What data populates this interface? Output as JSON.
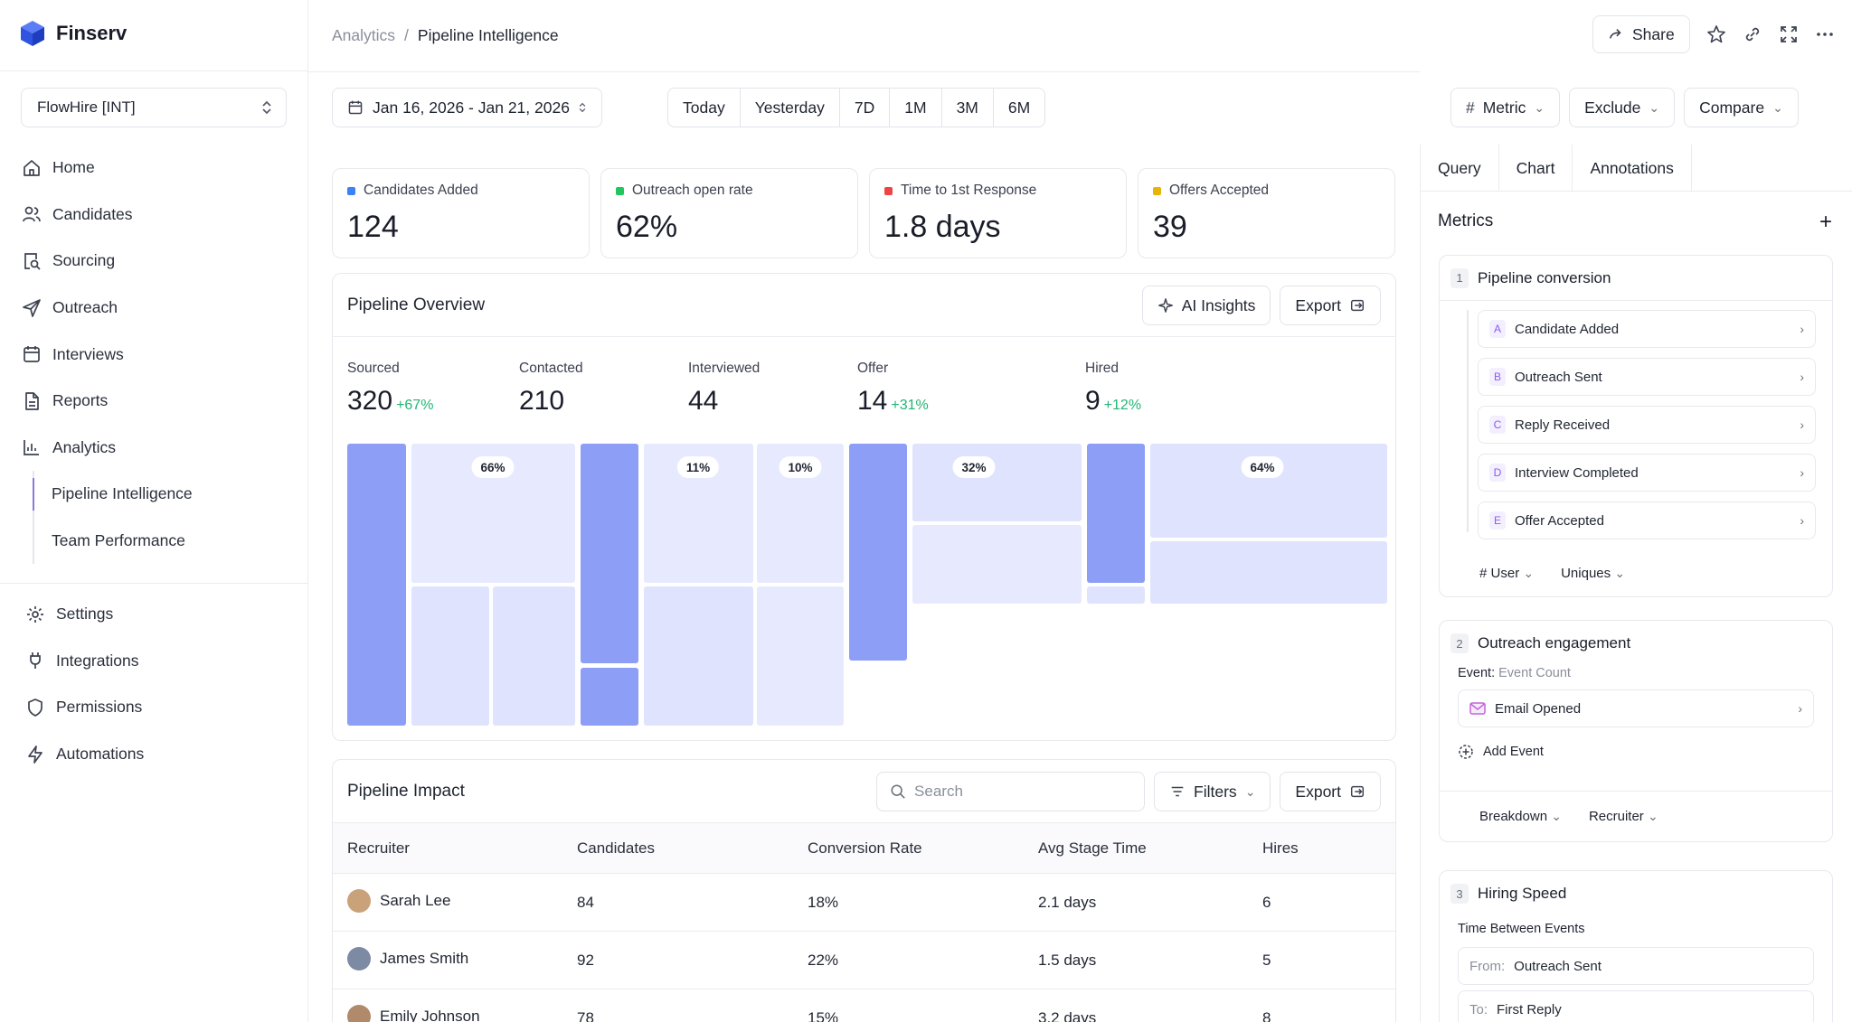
{
  "brand": {
    "name": "Finserv"
  },
  "workspace": {
    "name": "FlowHire [INT]"
  },
  "sidebar": {
    "items": [
      {
        "label": "Home",
        "icon": "home-icon"
      },
      {
        "label": "Candidates",
        "icon": "users-icon"
      },
      {
        "label": "Sourcing",
        "icon": "search-doc-icon"
      },
      {
        "label": "Outreach",
        "icon": "send-icon"
      },
      {
        "label": "Interviews",
        "icon": "calendar-icon"
      },
      {
        "label": "Reports",
        "icon": "file-icon"
      },
      {
        "label": "Analytics",
        "icon": "chart-icon"
      }
    ],
    "sub_items": [
      {
        "label": "Pipeline Intelligence",
        "active": true
      },
      {
        "label": "Team Performance",
        "active": false
      }
    ],
    "bottom_items": [
      {
        "label": "Settings",
        "icon": "gear-icon"
      },
      {
        "label": "Integrations",
        "icon": "plug-icon"
      },
      {
        "label": "Permissions",
        "icon": "shield-icon"
      },
      {
        "label": "Automations",
        "icon": "bolt-icon"
      }
    ]
  },
  "breadcrumb": {
    "parent": "Analytics",
    "separator": "/",
    "current": "Pipeline Intelligence"
  },
  "topbar": {
    "share_label": "Share"
  },
  "filters": {
    "date_range": "Jan 16, 2026 - Jan 21, 2026",
    "ranges": [
      "Today",
      "Yesterday",
      "7D",
      "1M",
      "3M",
      "6M"
    ],
    "metric_label": "Metric",
    "exclude_label": "Exclude",
    "compare_label": "Compare"
  },
  "kpis": [
    {
      "label": "Candidates Added",
      "value": "124",
      "color": "#3b82f6"
    },
    {
      "label": "Outreach open rate",
      "value": "62%",
      "color": "#22c55e"
    },
    {
      "label": "Time to 1st Response",
      "value": "1.8 days",
      "color": "#ef4444"
    },
    {
      "label": "Offers Accepted",
      "value": "39",
      "color": "#eab308"
    }
  ],
  "overview": {
    "title": "Pipeline Overview",
    "ai_label": "AI Insights",
    "export_label": "Export",
    "stages": [
      {
        "name": "Sourced",
        "value": "320",
        "delta": "+67%"
      },
      {
        "name": "Contacted",
        "value": "210",
        "delta": ""
      },
      {
        "name": "Interviewed",
        "value": "44",
        "delta": ""
      },
      {
        "name": "Offer",
        "value": "14",
        "delta": "+31%"
      },
      {
        "name": "Hired",
        "value": "9",
        "delta": "+12%"
      }
    ],
    "conversion_badges": [
      "66%",
      "11%",
      "10%",
      "32%",
      "64%"
    ]
  },
  "impact": {
    "title": "Pipeline Impact",
    "search_placeholder": "Search",
    "filters_label": "Filters",
    "export_label": "Export",
    "columns": [
      "Recruiter",
      "Candidates",
      "Conversion Rate",
      "Avg Stage Time",
      "Hires"
    ],
    "rows": [
      {
        "name": "Sarah Lee",
        "candidates": "84",
        "conversion": "18%",
        "time": "2.1 days",
        "hires": "6",
        "avatar_color": "#c9a27a"
      },
      {
        "name": "James Smith",
        "candidates": "92",
        "conversion": "22%",
        "time": "1.5 days",
        "hires": "5",
        "avatar_color": "#7d8aa3"
      },
      {
        "name": "Emily Johnson",
        "candidates": "78",
        "conversion": "15%",
        "time": "3.2 days",
        "hires": "8",
        "avatar_color": "#b08a6a"
      }
    ]
  },
  "panel": {
    "tabs": [
      "Query",
      "Chart",
      "Annotations"
    ],
    "metrics_title": "Metrics",
    "add_symbol": "+",
    "metric1": {
      "num": "1",
      "title": "Pipeline conversion",
      "steps": [
        {
          "letter": "A",
          "label": "Candidate Added"
        },
        {
          "letter": "B",
          "label": "Outreach Sent"
        },
        {
          "letter": "C",
          "label": "Reply Received"
        },
        {
          "letter": "D",
          "label": "Interview Completed"
        },
        {
          "letter": "E",
          "label": "Offer Accepted"
        }
      ],
      "user_label": "User",
      "uniques_label": "Uniques"
    },
    "metric2": {
      "num": "2",
      "title": "Outreach engagement",
      "event_label": "Event:",
      "event_value": "Event Count",
      "event": "Email Opened",
      "add_event": "Add Event",
      "breakdown_label": "Breakdown",
      "breakdown_value": "Recruiter"
    },
    "metric3": {
      "num": "3",
      "title": "Hiring Speed",
      "tbe_label": "Time Between Events",
      "from_label": "From:",
      "from_value": "Outreach Sent",
      "to_label": "To:",
      "to_value": "First Reply"
    }
  }
}
